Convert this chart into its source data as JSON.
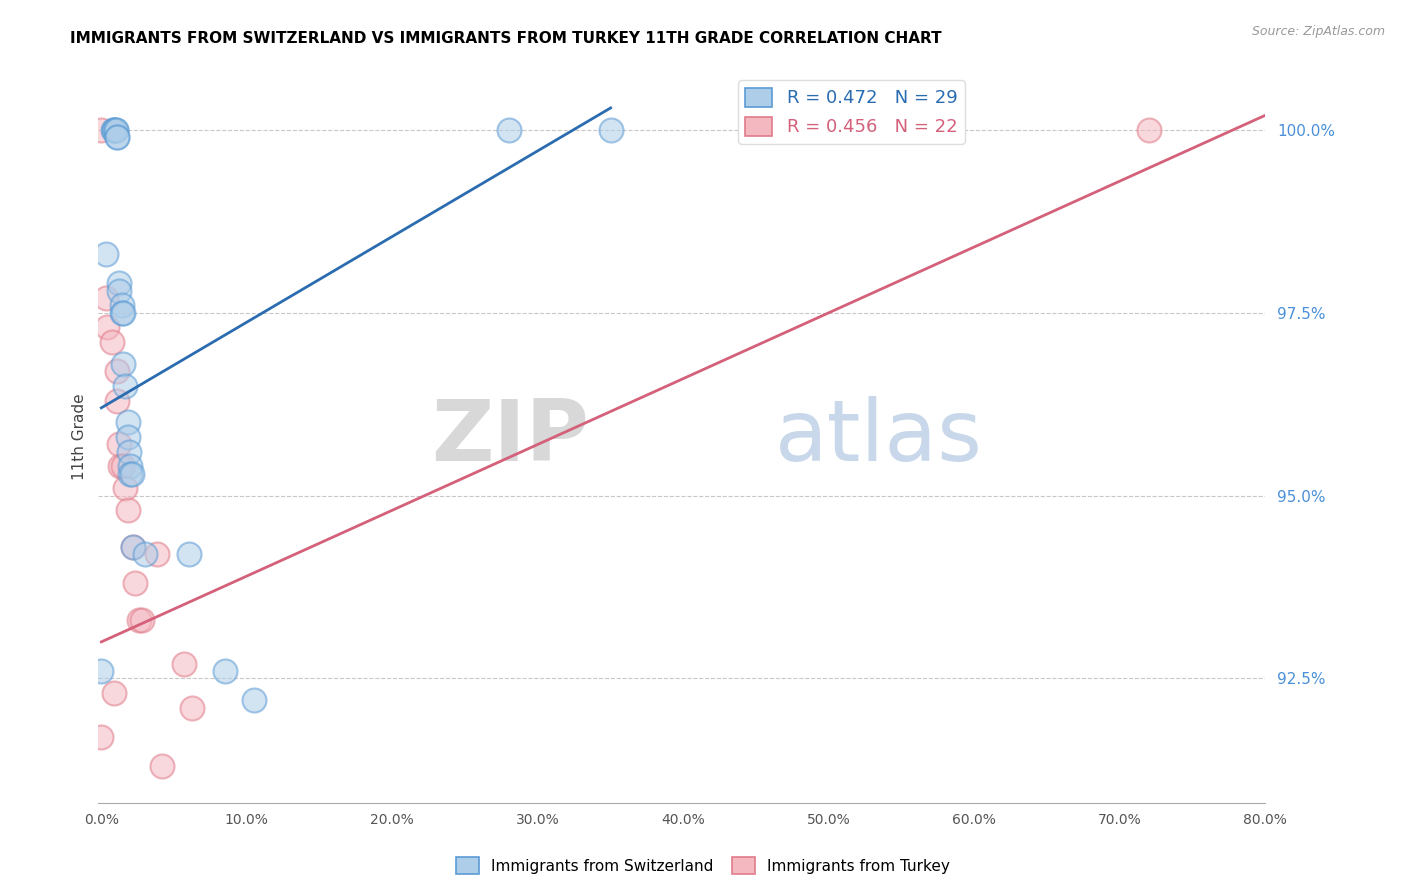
{
  "title": "IMMIGRANTS FROM SWITZERLAND VS IMMIGRANTS FROM TURKEY 11TH GRADE CORRELATION CHART",
  "source": "Source: ZipAtlas.com",
  "ylabel": "11th Grade",
  "watermark_zip": "ZIP",
  "watermark_atlas": "atlas",
  "x_tick_vals": [
    0.0,
    0.1,
    0.2,
    0.3,
    0.4,
    0.5,
    0.6,
    0.7,
    0.8
  ],
  "y_tick_vals": [
    0.925,
    0.95,
    0.975,
    1.0
  ],
  "y_tick_labels": [
    "92.5%",
    "95.0%",
    "97.5%",
    "100.0%"
  ],
  "xlim": [
    -0.002,
    0.8
  ],
  "ylim": [
    0.908,
    1.008
  ],
  "legend_blue_label": "Immigrants from Switzerland",
  "legend_pink_label": "Immigrants from Turkey",
  "blue_R": "0.472",
  "blue_N": "29",
  "pink_R": "0.456",
  "pink_N": "22",
  "blue_fill_color": "#aecde8",
  "blue_edge_color": "#5b9bd5",
  "pink_fill_color": "#f4b8c1",
  "pink_edge_color": "#e07b8a",
  "blue_line_color": "#2b6cb0",
  "pink_line_color": "#d4607a",
  "grid_color": "#c8c8c8",
  "right_axis_color": "#4a90d9",
  "blue_scatter_x": [
    0.003,
    0.008,
    0.009,
    0.009,
    0.01,
    0.01,
    0.011,
    0.011,
    0.012,
    0.012,
    0.014,
    0.014,
    0.015,
    0.015,
    0.016,
    0.018,
    0.018,
    0.019,
    0.02,
    0.02,
    0.021,
    0.022,
    0.03,
    0.06,
    0.085,
    0.105,
    0.28,
    0.35,
    0.0
  ],
  "blue_scatter_y": [
    0.983,
    1.0,
    1.0,
    1.0,
    1.0,
    1.0,
    0.999,
    0.999,
    0.979,
    0.978,
    0.976,
    0.975,
    0.975,
    0.968,
    0.965,
    0.96,
    0.958,
    0.956,
    0.954,
    0.953,
    0.953,
    0.943,
    0.942,
    0.942,
    0.926,
    0.922,
    1.0,
    1.0,
    0.926
  ],
  "pink_scatter_x": [
    0.003,
    0.004,
    0.007,
    0.009,
    0.011,
    0.011,
    0.012,
    0.013,
    0.015,
    0.016,
    0.018,
    0.022,
    0.023,
    0.026,
    0.028,
    0.038,
    0.042,
    0.057,
    0.062,
    0.0,
    0.72,
    0.0
  ],
  "pink_scatter_y": [
    0.977,
    0.973,
    0.971,
    0.923,
    0.967,
    0.963,
    0.957,
    0.954,
    0.954,
    0.951,
    0.948,
    0.943,
    0.938,
    0.933,
    0.933,
    0.942,
    0.913,
    0.927,
    0.921,
    1.0,
    1.0,
    0.917
  ],
  "blue_line_x": [
    0.0,
    0.35
  ],
  "blue_line_y": [
    0.962,
    1.003
  ],
  "pink_line_x": [
    0.0,
    0.8
  ],
  "pink_line_y": [
    0.93,
    1.002
  ]
}
